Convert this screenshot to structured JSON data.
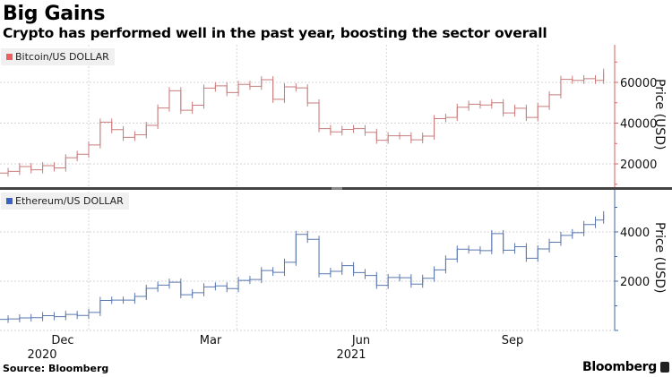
{
  "header": {
    "title": "Big Gains",
    "subtitle": "Crypto has performed well in the past year, boosting the sector overall"
  },
  "footer": {
    "source": "Source: Bloomberg",
    "logo": "Bloomberg"
  },
  "chart_data": [
    {
      "type": "line",
      "series_style": "ohlc-bars",
      "legend": "Bitcoin/US DOLLAR",
      "legend_placement": "top-left",
      "color": "#e06060",
      "ylabel": "Price (USD)",
      "ylim": [
        9000,
        77000
      ],
      "yticks": [
        20000,
        40000,
        60000
      ],
      "grid": true,
      "x": [
        "2020-11-06",
        "2020-11-13",
        "2020-11-20",
        "2020-11-27",
        "2020-12-04",
        "2020-12-11",
        "2020-12-18",
        "2020-12-25",
        "2021-01-01",
        "2021-01-08",
        "2021-01-15",
        "2021-01-22",
        "2021-01-29",
        "2021-02-05",
        "2021-02-12",
        "2021-02-19",
        "2021-02-26",
        "2021-03-05",
        "2021-03-12",
        "2021-03-19",
        "2021-03-26",
        "2021-04-02",
        "2021-04-09",
        "2021-04-16",
        "2021-04-23",
        "2021-04-30",
        "2021-05-07",
        "2021-05-14",
        "2021-05-21",
        "2021-05-28",
        "2021-06-04",
        "2021-06-11",
        "2021-06-18",
        "2021-06-25",
        "2021-07-02",
        "2021-07-09",
        "2021-07-16",
        "2021-07-23",
        "2021-07-30",
        "2021-08-06",
        "2021-08-13",
        "2021-08-20",
        "2021-08-27",
        "2021-09-03",
        "2021-09-10",
        "2021-09-17",
        "2021-09-24",
        "2021-10-01",
        "2021-10-08",
        "2021-10-15",
        "2021-10-22",
        "2021-10-29",
        "2021-11-05",
        "2021-11-10"
      ],
      "y": [
        15500,
        16300,
        18700,
        17100,
        19100,
        18000,
        23000,
        24700,
        29300,
        40500,
        36800,
        33000,
        34300,
        38900,
        47400,
        55900,
        46300,
        48800,
        57200,
        58300,
        55000,
        59000,
        58100,
        61300,
        51700,
        57800,
        57300,
        49900,
        37300,
        35700,
        36900,
        37300,
        35500,
        31600,
        33800,
        33800,
        31800,
        33600,
        42200,
        42800,
        47800,
        49300,
        48900,
        50000,
        45000,
        47300,
        42800,
        48200,
        53900,
        61500,
        61000,
        61800,
        61000,
        65000
      ]
    },
    {
      "type": "line",
      "series_style": "ohlc-bars",
      "legend": "Ethereum/US DOLLAR",
      "legend_placement": "top-left",
      "color": "#4a6db0",
      "ylabel": "Price (USD)",
      "ylim": [
        0,
        5700
      ],
      "yticks": [
        2000,
        4000
      ],
      "grid": true,
      "x_tick_labels": [
        "Dec",
        "Mar",
        "Jun",
        "Sep"
      ],
      "x_year_labels": [
        "2020",
        "2021"
      ],
      "x": [
        "2020-11-06",
        "2020-11-13",
        "2020-11-20",
        "2020-11-27",
        "2020-12-04",
        "2020-12-11",
        "2020-12-18",
        "2020-12-25",
        "2021-01-01",
        "2021-01-08",
        "2021-01-15",
        "2021-01-22",
        "2021-01-29",
        "2021-02-05",
        "2021-02-12",
        "2021-02-19",
        "2021-02-26",
        "2021-03-05",
        "2021-03-12",
        "2021-03-19",
        "2021-03-26",
        "2021-04-02",
        "2021-04-09",
        "2021-04-16",
        "2021-04-23",
        "2021-04-30",
        "2021-05-07",
        "2021-05-14",
        "2021-05-21",
        "2021-05-28",
        "2021-06-04",
        "2021-06-11",
        "2021-06-18",
        "2021-06-25",
        "2021-07-02",
        "2021-07-09",
        "2021-07-16",
        "2021-07-23",
        "2021-07-30",
        "2021-08-06",
        "2021-08-13",
        "2021-08-20",
        "2021-08-27",
        "2021-09-03",
        "2021-09-10",
        "2021-09-17",
        "2021-09-24",
        "2021-10-01",
        "2021-10-08",
        "2021-10-15",
        "2021-10-22",
        "2021-10-29",
        "2021-11-05",
        "2021-11-10"
      ],
      "y": [
        450,
        470,
        510,
        520,
        600,
        560,
        650,
        610,
        730,
        1220,
        1230,
        1230,
        1380,
        1710,
        1840,
        1960,
        1450,
        1530,
        1770,
        1810,
        1700,
        2030,
        2070,
        2430,
        2360,
        2770,
        3900,
        3700,
        2300,
        2400,
        2630,
        2350,
        2230,
        1830,
        2150,
        2140,
        1880,
        2120,
        2460,
        2900,
        3300,
        3270,
        3240,
        3930,
        3260,
        3400,
        2930,
        3310,
        3580,
        3860,
        3970,
        4300,
        4480,
        4700
      ]
    }
  ]
}
